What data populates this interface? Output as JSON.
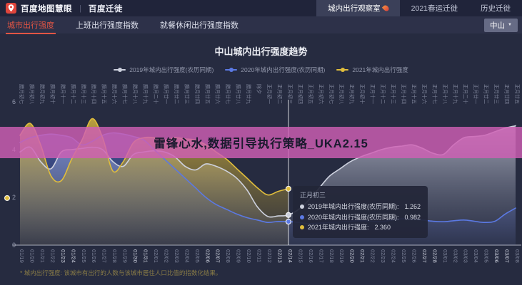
{
  "topbar": {
    "brand": "百度地图慧眼",
    "divider": "|",
    "product": "百度迁徙",
    "nav": [
      {
        "label": "城内出行观察室",
        "flame": true,
        "active": true
      },
      {
        "label": "2021春运迁徙",
        "flame": false,
        "active": false
      },
      {
        "label": "历史迁徙",
        "flame": false,
        "active": false
      }
    ]
  },
  "tabbar": {
    "tabs": [
      {
        "label": "城市出行强度",
        "active": true
      },
      {
        "label": "上班出行强度指数",
        "active": false
      },
      {
        "label": "就餐休闲出行强度指数",
        "active": false
      }
    ],
    "city_selector": {
      "label": "中山",
      "caret": "▼"
    }
  },
  "banner": {
    "text": "雷锋心水,数据引导执行策略_UKA2.15",
    "bg_color": "rgba(208,95,181,0.82)",
    "text_color": "#1a1a2e"
  },
  "chart_data": {
    "type": "area",
    "title": "中山城内出行强度趋势",
    "ylim": [
      0,
      6
    ],
    "yticks": [
      0,
      2,
      4,
      6
    ],
    "highlight_index": 26,
    "x_dates": [
      "01/19",
      "01/20",
      "01/21",
      "01/22",
      "01/23",
      "01/24",
      "01/25",
      "01/26",
      "01/27",
      "01/28",
      "01/29",
      "01/30",
      "01/31",
      "02/01",
      "02/02",
      "02/03",
      "02/04",
      "02/05",
      "02/06",
      "02/07",
      "02/08",
      "02/09",
      "02/10",
      "02/11",
      "02/12",
      "02/13",
      "02/14",
      "02/15",
      "02/16",
      "02/17",
      "02/18",
      "02/19",
      "02/20",
      "02/21",
      "02/22",
      "02/23",
      "02/24",
      "02/25",
      "02/26",
      "02/27",
      "02/28",
      "03/01",
      "03/02",
      "03/03",
      "03/04",
      "03/05",
      "03/06",
      "03/07",
      "03/08"
    ],
    "x_lunar": [
      "腊月初七",
      "腊月初八",
      "腊月初九",
      "腊月初十",
      "腊月十一",
      "腊月十二",
      "腊月十三",
      "腊月十四",
      "腊月十五",
      "腊月十六",
      "腊月十七",
      "腊月十八",
      "腊月十九",
      "腊月二十",
      "腊月廿一",
      "腊月廿二",
      "腊月廿三",
      "腊月廿四",
      "腊月廿五",
      "腊月廿六",
      "腊月廿七",
      "腊月廿八",
      "腊月廿九",
      "除夕",
      "正月初一",
      "正月初二",
      "正月初三",
      "正月初四",
      "正月初五",
      "正月初六",
      "正月初七",
      "正月初八",
      "正月初九",
      "正月初十",
      "正月十一",
      "正月十二",
      "正月十三",
      "正月十四",
      "正月十五",
      "正月十六",
      "正月十七",
      "正月十八",
      "正月十九",
      "正月二十",
      "正月廿一",
      "正月廿二",
      "正月廿三",
      "正月廿四",
      "正月廿五"
    ],
    "series": [
      {
        "name": "2019年城内出行强度(农历同期)",
        "color": "#cdd1de",
        "fill_from": "rgba(205,209,222,0.75)",
        "fill_to": "rgba(120,126,150,0.08)",
        "values": [
          3.9,
          4.1,
          3.5,
          3.2,
          3.9,
          4.0,
          4.05,
          4.1,
          4.0,
          3.5,
          3.3,
          3.8,
          3.9,
          3.95,
          3.9,
          3.7,
          3.3,
          3.15,
          3.4,
          3.3,
          3.1,
          2.8,
          2.3,
          1.6,
          1.2,
          1.22,
          1.262,
          1.5,
          1.9,
          2.4,
          2.9,
          3.2,
          3.5,
          3.7,
          3.85,
          4.0,
          4.1,
          4.15,
          4.2,
          4.05,
          3.85,
          3.8,
          4.2,
          4.5,
          4.55,
          4.6,
          4.75,
          4.9,
          5.0
        ]
      },
      {
        "name": "2020年城内出行强度(农历同期)",
        "color": "#5b79e3",
        "fill_from": "rgba(85,115,220,0.55)",
        "fill_to": "rgba(85,115,220,0.05)",
        "values": [
          4.3,
          4.5,
          4.6,
          4.65,
          4.6,
          4.5,
          4.2,
          4.35,
          4.6,
          4.7,
          4.65,
          4.55,
          4.4,
          4.0,
          3.6,
          3.2,
          2.8,
          2.4,
          2.0,
          1.7,
          1.5,
          1.3,
          1.15,
          1.05,
          0.95,
          0.99,
          0.982,
          0.95,
          0.9,
          0.92,
          0.95,
          0.97,
          1.0,
          1.02,
          1.0,
          0.98,
          1.05,
          1.1,
          1.08,
          1.05,
          1.0,
          0.98,
          1.02,
          1.05,
          1.0,
          0.95,
          1.0,
          1.3,
          1.55
        ]
      },
      {
        "name": "2021年城内出行强度",
        "color": "#e0bd3c",
        "fill_from": "rgba(212,180,62,0.85)",
        "fill_to": "rgba(140,120,50,0.12)",
        "values": [
          4.6,
          5.1,
          4.2,
          2.9,
          2.7,
          3.6,
          4.4,
          5.3,
          4.5,
          3.1,
          3.5,
          4.3,
          4.5,
          4.5,
          4.4,
          4.5,
          4.45,
          4.4,
          4.2,
          3.9,
          3.6,
          3.2,
          2.8,
          2.4,
          2.1,
          2.25,
          2.36,
          null,
          null,
          null,
          null,
          null,
          null,
          null,
          null,
          null,
          null,
          null,
          null,
          null,
          null,
          null,
          null,
          null,
          null,
          null,
          null,
          null,
          null
        ]
      }
    ]
  },
  "tooltip": {
    "title": "正月初三",
    "rows": [
      {
        "label": "2019年城内出行强度(农历同期):",
        "value": "1.262",
        "color": "#cdd1de"
      },
      {
        "label": "2020年城内出行强度(农历同期):",
        "value": "0.982",
        "color": "#5b79e3"
      },
      {
        "label": "2021年城内出行强度:",
        "value": "2.360",
        "color": "#e0bd3c"
      }
    ]
  },
  "footnote": "* 城内出行强度: 该城市有出行的人数与该城市居住人口比值的指数化结果。"
}
